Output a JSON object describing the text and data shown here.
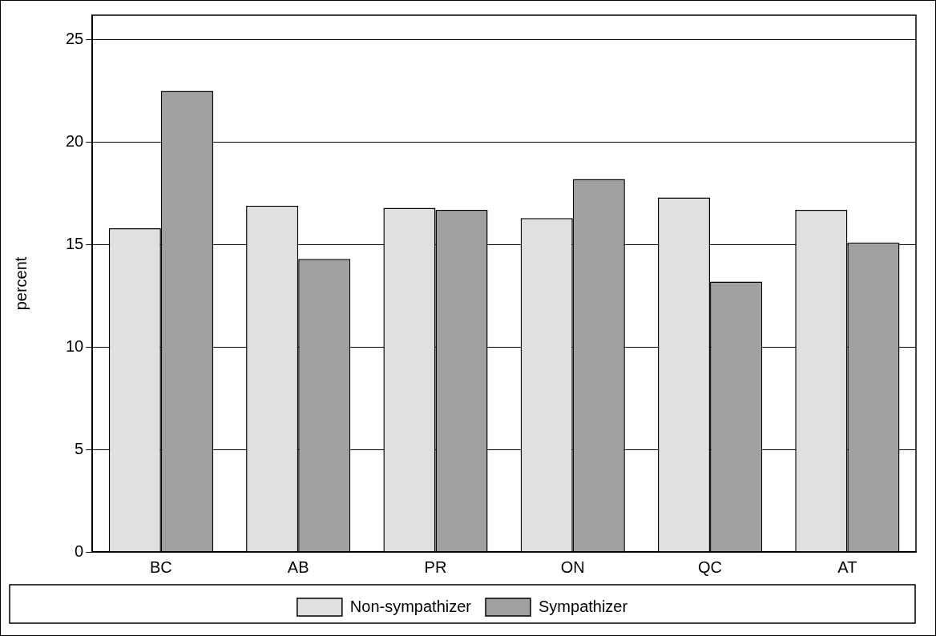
{
  "chart_data": {
    "type": "bar",
    "ylabel": "percent",
    "categories": [
      "BC",
      "AB",
      "PR",
      "ON",
      "QC",
      "AT"
    ],
    "series": [
      {
        "name": "Non-sympathizer",
        "color": "#e0e0e0",
        "values": [
          15.8,
          16.9,
          16.8,
          16.3,
          17.3,
          16.7
        ]
      },
      {
        "name": "Sympathizer",
        "color": "#a0a0a0",
        "values": [
          22.5,
          14.3,
          16.7,
          18.2,
          13.2,
          15.1
        ]
      }
    ],
    "ylim": [
      0,
      26.2
    ],
    "yticks": [
      0,
      5,
      10,
      15,
      20,
      25
    ],
    "grid": "y",
    "legend": "bottom"
  }
}
